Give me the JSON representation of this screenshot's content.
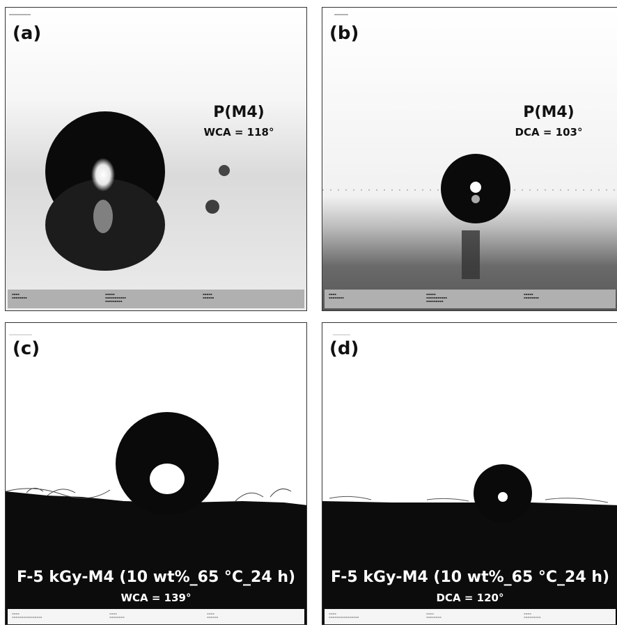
{
  "panels": {
    "a": {
      "label": "(a)",
      "title": "P(M4)",
      "angle": "WCA = 118°"
    },
    "b": {
      "label": "(b)",
      "title": "P(M4)",
      "angle": "DCA = 103°"
    },
    "c": {
      "label": "(c)",
      "title": "F-5 kGy-M4 (10 wt%_65 °C_24 h)",
      "angle": "WCA = 139°"
    },
    "d": {
      "label": "(d)",
      "title": "F-5 kGy-M4 (10 wt%_65 °C_24 h)",
      "angle": "DCA = 120°"
    }
  },
  "colors": {
    "drop": "#0a0a0a",
    "substrate": "#0c0c0c",
    "background": "#efefef"
  }
}
